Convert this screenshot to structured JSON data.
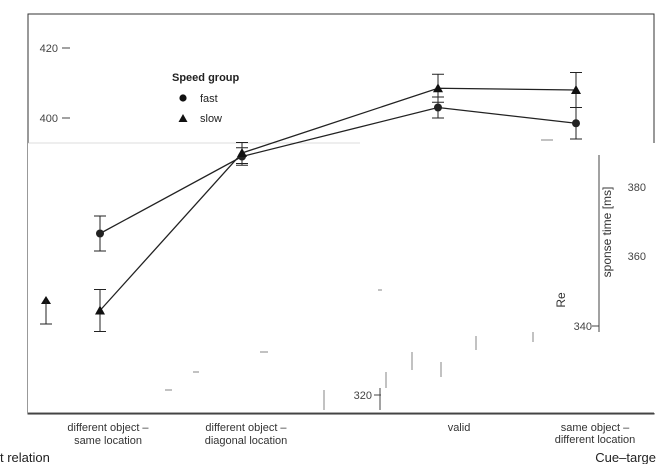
{
  "chart_data": {
    "type": "line",
    "xlabel_fragment_left": "t relation",
    "xlabel_fragment_right": "Cue–targe",
    "ylabel_fragment": "sponse time [ms]",
    "ylabel_char": "Re",
    "categories": [
      {
        "line1": "different object –",
        "line2": "same location"
      },
      {
        "line1": "different object –",
        "line2": "diagonal location"
      },
      {
        "line1": "valid",
        "line2": ""
      },
      {
        "line1": "same object –",
        "line2": "different location"
      }
    ],
    "y_ticks_top": [
      "420",
      "400"
    ],
    "y_ticks_inset": [
      "380",
      "360"
    ],
    "y_ticks_lower": [
      "340",
      "320"
    ],
    "ylim": [
      318,
      425
    ],
    "legend": {
      "title": "Speed group",
      "placement": "top-left",
      "items": [
        {
          "label": "fast",
          "marker": "circle"
        },
        {
          "label": "slow",
          "marker": "triangle"
        }
      ]
    },
    "series": [
      {
        "name": "fast",
        "values": [
          367,
          389,
          403,
          398.5
        ],
        "error": [
          5,
          2.5,
          3,
          4.5
        ]
      },
      {
        "name": "slow",
        "values": [
          345,
          390,
          408.5,
          408
        ],
        "error": [
          6,
          3,
          4,
          5
        ]
      }
    ]
  }
}
